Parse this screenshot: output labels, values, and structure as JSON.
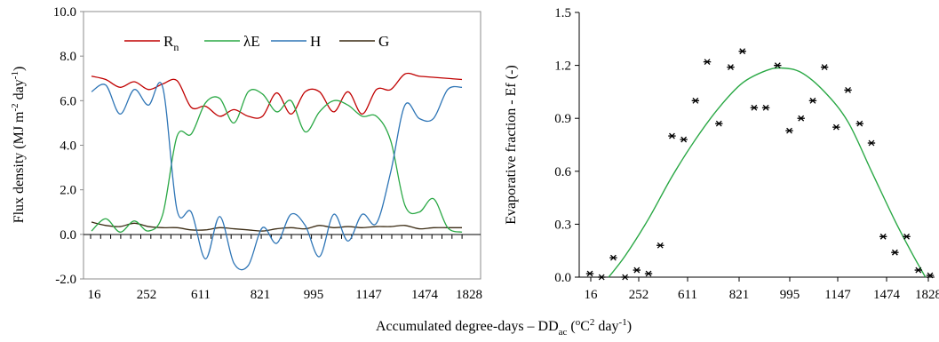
{
  "figure": {
    "shared_xlabel": "Accumulated degree-days – DD",
    "shared_xlabel_sub": "ac",
    "shared_xlabel_unit_pre": " (",
    "shared_xlabel_unit_o": "o",
    "shared_xlabel_unit_c": "C",
    "shared_xlabel_unit_2": "2",
    "shared_xlabel_unit_day": " day",
    "shared_xlabel_unit_exp": "-1",
    "shared_xlabel_unit_post": ")"
  },
  "chart_data": [
    {
      "type": "line",
      "title": "",
      "ylabel": "Flux density (MJ m",
      "ylabel_exp1": "-2",
      "ylabel_mid": " day",
      "ylabel_exp2": "-1",
      "ylabel_end": ")",
      "ylim": [
        -2.0,
        10.0
      ],
      "yticks": [
        "-2.0",
        "0.0",
        "2.0",
        "4.0",
        "6.0",
        "8.0",
        "10.0"
      ],
      "ytick_values": [
        -2,
        0,
        2,
        4,
        6,
        8,
        10
      ],
      "xtick_labels": [
        "16",
        "252",
        "611",
        "821",
        "995",
        "1147",
        "1474",
        "1828"
      ],
      "grid": false,
      "legend_position": "top",
      "x_index": [
        0,
        1,
        2,
        3,
        4,
        5,
        6,
        7,
        8,
        9,
        10,
        11,
        12,
        13,
        14,
        15,
        16,
        17,
        18,
        19,
        20,
        21,
        22,
        23,
        24,
        25,
        26
      ],
      "series": [
        {
          "name": "R",
          "name_sub": "n",
          "color": "#c00000",
          "values": [
            7.1,
            6.95,
            6.6,
            6.85,
            6.5,
            6.75,
            6.9,
            5.7,
            5.75,
            5.3,
            5.6,
            5.3,
            5.3,
            6.35,
            5.4,
            6.4,
            6.4,
            5.5,
            6.4,
            5.4,
            6.5,
            6.5,
            7.2,
            7.1,
            7.05,
            7.0,
            6.95
          ]
        },
        {
          "name": "λE",
          "name_sub": "",
          "color": "#2aa845",
          "values": [
            0.15,
            0.7,
            0.1,
            0.6,
            0.15,
            0.9,
            4.4,
            4.5,
            5.9,
            6.1,
            5.0,
            6.4,
            6.3,
            5.5,
            6.0,
            4.6,
            5.5,
            6.0,
            5.8,
            5.3,
            5.3,
            4.2,
            1.3,
            1.0,
            1.6,
            0.3,
            0.1
          ]
        },
        {
          "name": "H",
          "name_sub": "",
          "color": "#2e75b6",
          "values": [
            6.4,
            6.7,
            5.4,
            6.5,
            5.8,
            6.6,
            1.1,
            1.0,
            -1.1,
            0.8,
            -1.3,
            -1.4,
            0.3,
            -0.4,
            0.9,
            0.4,
            -1.0,
            0.9,
            -0.3,
            0.9,
            0.5,
            2.8,
            5.8,
            5.2,
            5.2,
            6.5,
            6.6
          ]
        },
        {
          "name": "G",
          "name_sub": "",
          "color": "#3a2a12",
          "values": [
            0.55,
            0.4,
            0.35,
            0.5,
            0.35,
            0.3,
            0.3,
            0.2,
            0.2,
            0.3,
            0.25,
            0.2,
            0.15,
            0.25,
            0.3,
            0.25,
            0.4,
            0.3,
            0.35,
            0.3,
            0.35,
            0.35,
            0.4,
            0.25,
            0.3,
            0.3,
            0.3
          ]
        }
      ]
    },
    {
      "type": "scatter",
      "title": "",
      "ylabel": "Evaporative fraction - Ef (-)",
      "ylim": [
        0.0,
        1.5
      ],
      "yticks": [
        "0.0",
        "0.3",
        "0.6",
        "0.9",
        "1.2",
        "1.5"
      ],
      "ytick_values": [
        0,
        0.3,
        0.6,
        0.9,
        1.2,
        1.5
      ],
      "xtick_labels": [
        "16",
        "252",
        "611",
        "821",
        "995",
        "1147",
        "1474",
        "1828"
      ],
      "grid": false,
      "points_color": "#000000",
      "x_index": [
        0,
        1,
        2,
        3,
        4,
        5,
        6,
        7,
        8,
        9,
        10,
        11,
        12,
        13,
        14,
        15,
        16,
        17,
        18,
        19,
        20,
        21,
        22,
        23,
        24,
        25,
        26,
        27,
        28,
        29
      ],
      "points": [
        0.02,
        0.0,
        0.11,
        0.0,
        0.04,
        0.02,
        0.18,
        0.8,
        0.78,
        1.0,
        1.22,
        0.87,
        1.19,
        1.28,
        0.96,
        0.96,
        1.2,
        0.83,
        0.9,
        1.0,
        1.19,
        0.85,
        1.06,
        0.87,
        0.76,
        0.23,
        0.14,
        0.23,
        0.04,
        0.01
      ],
      "fit": {
        "color": "#2aa845",
        "x_index": [
          1.6,
          3.0,
          5.0,
          7.0,
          9.0,
          11.0,
          13.0,
          15.0,
          16.3,
          18.0,
          20.0,
          22.0,
          24.0,
          26.0,
          27.5,
          28.6
        ],
        "values": [
          0.0,
          0.12,
          0.33,
          0.57,
          0.78,
          0.96,
          1.1,
          1.17,
          1.185,
          1.16,
          1.05,
          0.88,
          0.6,
          0.32,
          0.13,
          0.0
        ]
      }
    }
  ]
}
